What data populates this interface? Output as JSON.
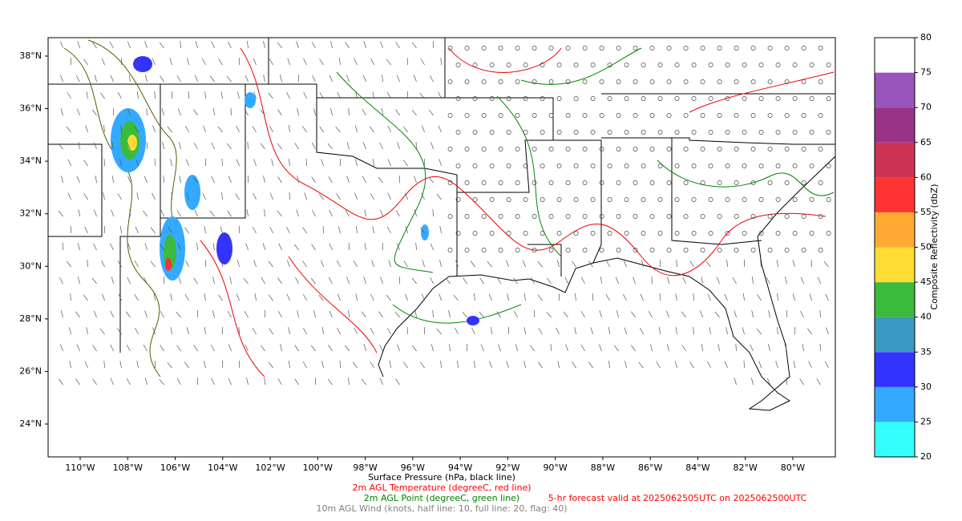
{
  "map": {
    "lon_range": [
      -111.35,
      -78.21
    ],
    "lat_range": [
      22.75,
      38.7
    ],
    "xticks": [
      {
        "value": -110,
        "label": "110°W"
      },
      {
        "value": -108,
        "label": "108°W"
      },
      {
        "value": -106,
        "label": "106°W"
      },
      {
        "value": -104,
        "label": "104°W"
      },
      {
        "value": -102,
        "label": "102°W"
      },
      {
        "value": -100,
        "label": "100°W"
      },
      {
        "value": -98,
        "label": "98°W"
      },
      {
        "value": -96,
        "label": "96°W"
      },
      {
        "value": -94,
        "label": "94°W"
      },
      {
        "value": -92,
        "label": "92°W"
      },
      {
        "value": -90,
        "label": "90°W"
      },
      {
        "value": -88,
        "label": "88°W"
      },
      {
        "value": -86,
        "label": "86°W"
      },
      {
        "value": -84,
        "label": "84°W"
      },
      {
        "value": -82,
        "label": "82°W"
      },
      {
        "value": -80,
        "label": "80°W"
      }
    ],
    "yticks": [
      {
        "value": 24,
        "label": "24°N"
      },
      {
        "value": 26,
        "label": "26°N"
      },
      {
        "value": 28,
        "label": "28°N"
      },
      {
        "value": 30,
        "label": "30°N"
      },
      {
        "value": 32,
        "label": "32°N"
      },
      {
        "value": 34,
        "label": "34°N"
      },
      {
        "value": 36,
        "label": "36°N"
      },
      {
        "value": 38,
        "label": "38°N"
      }
    ]
  },
  "colorbar": {
    "label": "Composite Reflectivity (dbZ)",
    "ticks": [
      20,
      25,
      30,
      35,
      40,
      45,
      50,
      55,
      60,
      65,
      70,
      75,
      80
    ],
    "colors": [
      "#33ffff",
      "#33aaff",
      "#3333ff",
      "#3a99c0",
      "#3bbb3b",
      "#ffdd33",
      "#ffaa33",
      "#ff3333",
      "#cc3355",
      "#993388",
      "#9955bb",
      "#ffffff"
    ]
  },
  "captions": [
    {
      "text": "Surface Pressure (hPa, black line)",
      "color": "#000000"
    },
    {
      "text": "2m AGL Temperature (degreeC, red line)",
      "color": "#ff0000"
    },
    {
      "text": "2m AGL Point (degreeC, green line)",
      "color": "#008000"
    },
    {
      "text": "10m AGL Wind (knots, half line: 10, full line: 20, flag: 40)",
      "color": "#808080"
    }
  ],
  "forecast": {
    "text": "5-hr forecast valid at 2025062505UTC on 2025062500UTC",
    "color": "#ff0000"
  }
}
